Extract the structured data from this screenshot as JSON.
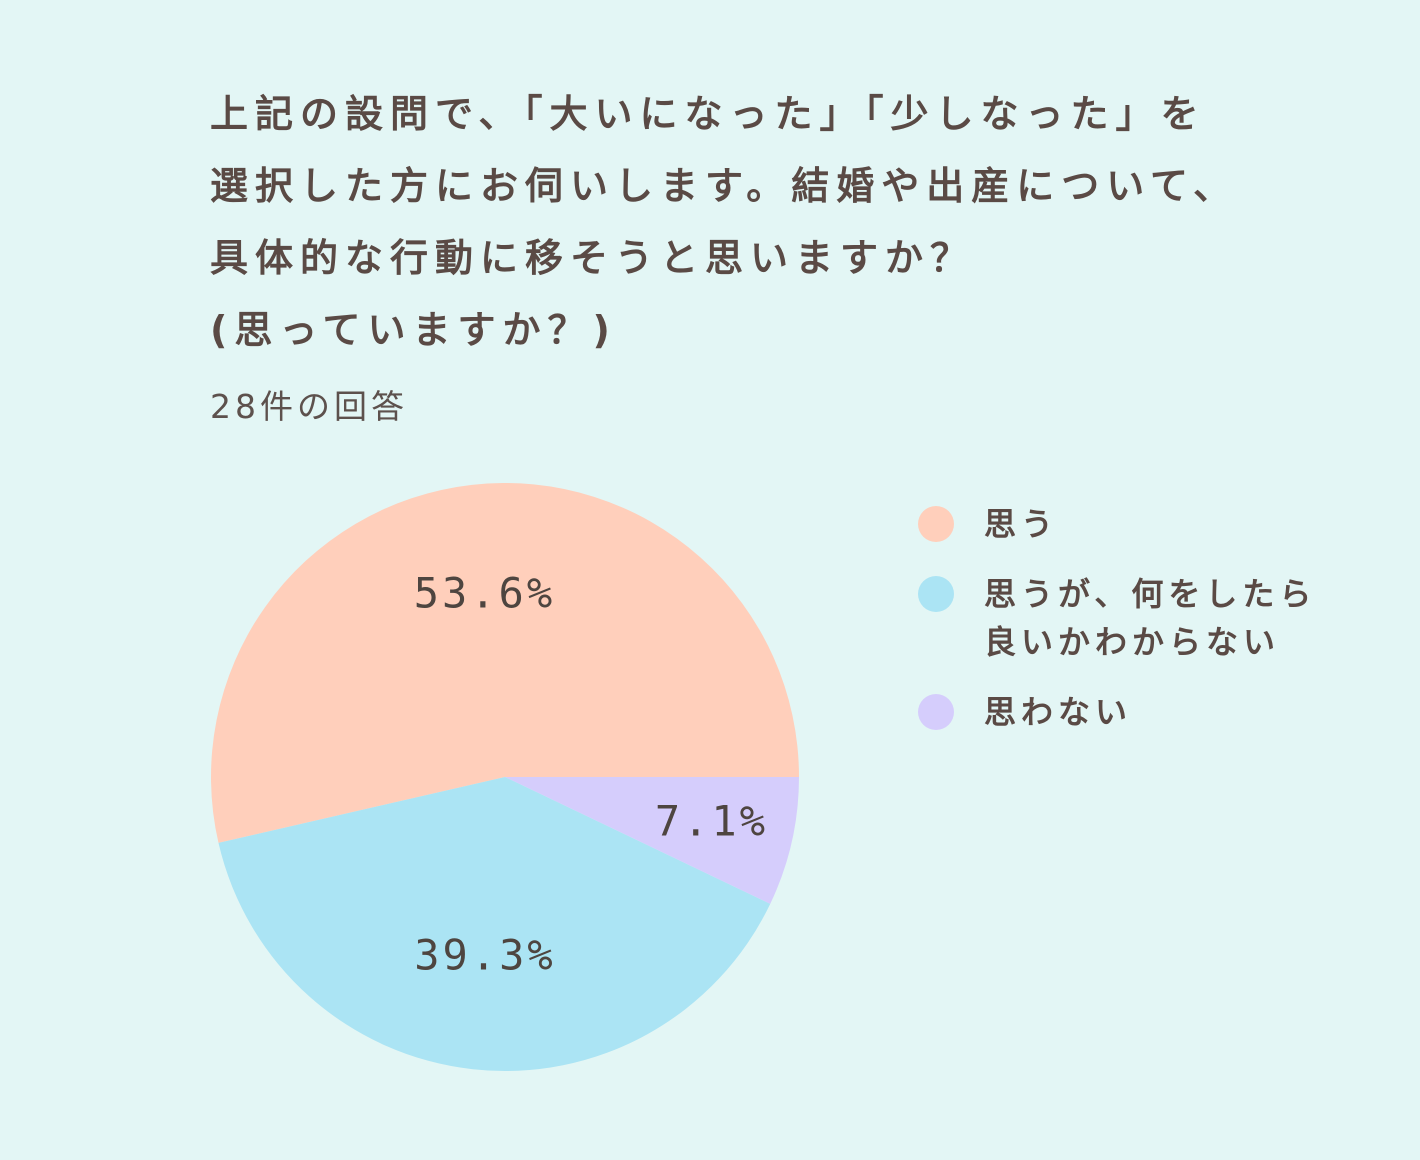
{
  "question": {
    "lines": [
      "上記の設問で、「大いになった」「少しなった」を",
      "選択した方にお伺いします。結婚や出産について、",
      "具体的な行動に移そうと思いますか？",
      "(思っていますか？)"
    ]
  },
  "response_count": "28件の回答",
  "chart_data": {
    "type": "pie",
    "title": "",
    "slices": [
      {
        "label": "思う",
        "value": 53.6,
        "display": "53.6%",
        "color": "#ffcfbb"
      },
      {
        "label": "思うが、何をしたら良いかわからない",
        "value": 39.3,
        "display": "39.3%",
        "color": "#abe4f4"
      },
      {
        "label": "思わない",
        "value": 7.1,
        "display": "7.1%",
        "color": "#d5cdfc"
      }
    ],
    "start_angle_deg": 0,
    "direction": "counterclockwise",
    "legend_position": "right"
  },
  "legend": [
    {
      "label": "思う",
      "color": "#ffcfbb"
    },
    {
      "label": "思うが、何をしたら良いかわからない",
      "color": "#abe4f4"
    },
    {
      "label": "思わない",
      "color": "#d5cdfc"
    }
  ]
}
